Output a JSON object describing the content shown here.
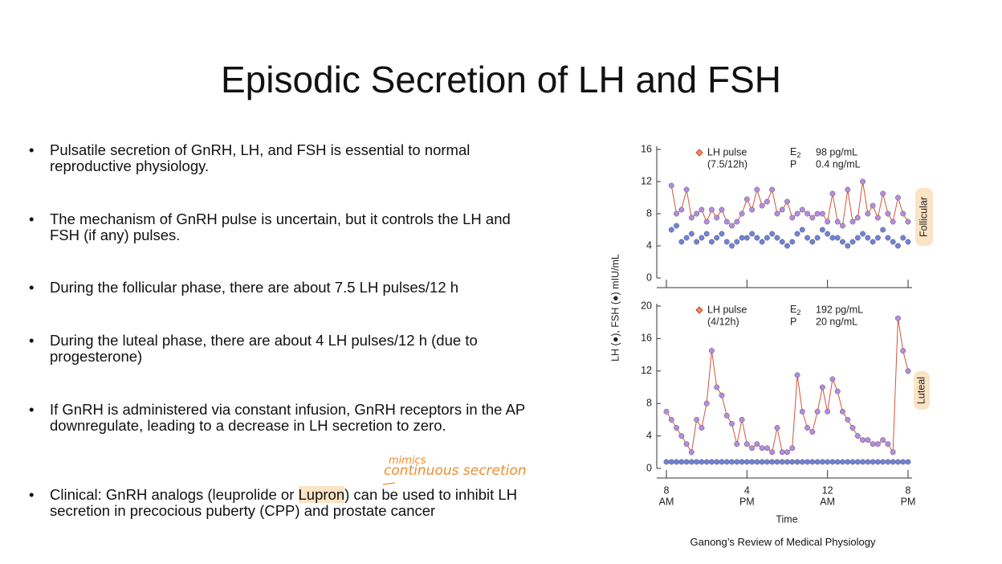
{
  "title": "Episodic Secretion of LH and FSH",
  "bullets": [
    {
      "text": "Pulsatile secretion of GnRH, LH, and FSH is essential to normal reproductive physiology."
    },
    {
      "text": "The mechanism of GnRH pulse is uncertain, but it controls the LH and FSH (if any) pulses."
    },
    {
      "text": "During the follicular phase, there are about 7.5 LH pulses/12 h"
    },
    {
      "text": "During the luteal phase, there are about 4 LH pulses/12 h (due to progesterone)"
    },
    {
      "text": "If GnRH is administered via constant infusion, GnRH receptors in the AP downregulate, leading to a decrease in LH secretion to zero."
    },
    {
      "text_before": "Clinical: GnRH analogs (leuprolide or ",
      "highlight": "Lupron",
      "text_after": ") can be used to inhibit LH secretion in precocious puberty (CPP) and prostate cancer"
    }
  ],
  "annotation": {
    "line1": "mimics",
    "line2": "continuous secretion"
  },
  "figure": {
    "type": "scatter",
    "ylabel": "LH (●), FSH (●) mIU/mL",
    "xlabel": "Time",
    "xlim": [
      0,
      24
    ],
    "xticks": [
      {
        "value": 0,
        "label": "8",
        "sublabel": "AM"
      },
      {
        "value": 8,
        "label": "4",
        "sublabel": "PM"
      },
      {
        "value": 16,
        "label": "12",
        "sublabel": "AM"
      },
      {
        "value": 24,
        "label": "8",
        "sublabel": "PM"
      }
    ],
    "caption": "Ganong’s Review of Medical Physiology",
    "panels": [
      {
        "phase": "Follicular",
        "pulse_label": "LH pulse",
        "pulse_rate": "(7.5/12h)",
        "e2_label": "E",
        "e2_sub": "2",
        "e2_value": "98 pg/mL",
        "p_label": "P",
        "p_value": "0.4 ng/mL",
        "ylim": [
          0,
          16
        ],
        "yticks": [
          0,
          4,
          8,
          12,
          16
        ],
        "x": [
          0.5,
          1,
          1.5,
          2,
          2.5,
          3,
          3.5,
          4,
          4.5,
          5,
          5.5,
          6,
          6.5,
          7,
          7.5,
          8,
          8.5,
          9,
          9.5,
          10,
          10.5,
          11,
          11.5,
          12,
          12.5,
          13,
          13.5,
          14,
          14.5,
          15,
          15.5,
          16,
          16.5,
          17,
          17.5,
          18,
          18.5,
          19,
          19.5,
          20,
          20.5,
          21,
          21.5,
          22,
          22.5,
          23,
          23.5,
          24
        ],
        "series": [
          {
            "name": "LH",
            "color": "#b58ce0",
            "line_color": "#d2553a",
            "values": [
              11.5,
              8,
              8.5,
              11,
              7.5,
              8,
              8.5,
              7,
              8.5,
              7.5,
              8.5,
              7,
              6.5,
              7,
              8,
              9.8,
              8.5,
              11,
              9,
              9.5,
              11,
              8,
              8.5,
              9.5,
              7.5,
              8,
              8.5,
              8,
              7.5,
              8,
              8,
              7,
              10.5,
              7,
              6.5,
              11,
              7,
              7.5,
              12,
              8,
              9,
              7.5,
              10.5,
              8,
              7,
              10,
              8,
              7
            ]
          },
          {
            "name": "FSH",
            "color": "#7182d8",
            "values": [
              6,
              6.5,
              4.5,
              5,
              5.5,
              4.5,
              5,
              5.5,
              4.5,
              5,
              5.5,
              4.5,
              4,
              4.5,
              5,
              5,
              5.5,
              5,
              4.5,
              5,
              5.5,
              5,
              4.5,
              4,
              4.5,
              5.5,
              6,
              5,
              4.5,
              5,
              6,
              5.5,
              5,
              5,
              4.5,
              4,
              4.5,
              5,
              5.5,
              5,
              4.5,
              5,
              6,
              5,
              4.5,
              4,
              5,
              4.5
            ]
          }
        ]
      },
      {
        "phase": "Luteal",
        "pulse_label": "LH pulse",
        "pulse_rate": "(4/12h)",
        "e2_label": "E",
        "e2_sub": "2",
        "e2_value": "192 pg/mL",
        "p_label": "P",
        "p_value": "20 ng/mL",
        "ylim": [
          0,
          20
        ],
        "yticks": [
          0,
          4,
          8,
          12,
          16,
          20
        ],
        "x": [
          0,
          0.5,
          1,
          1.5,
          2,
          2.5,
          3,
          3.5,
          4,
          4.5,
          5,
          5.5,
          6,
          6.5,
          7,
          7.5,
          8,
          8.5,
          9,
          9.5,
          10,
          10.5,
          11,
          11.5,
          12,
          12.5,
          13,
          13.5,
          14,
          14.5,
          15,
          15.5,
          16,
          16.5,
          17,
          17.5,
          18,
          18.5,
          19,
          19.5,
          20,
          20.5,
          21,
          21.5,
          22,
          22.5,
          23,
          23.5,
          24
        ],
        "series": [
          {
            "name": "LH",
            "color": "#b58ce0",
            "line_color": "#d2553a",
            "values": [
              7,
              6,
              5,
              4,
              3,
              2,
              6,
              5,
              8,
              14.5,
              10,
              9,
              6.5,
              5.5,
              3,
              6,
              3,
              2.5,
              3,
              2.5,
              2.5,
              2,
              5,
              2,
              2,
              2.5,
              11.5,
              7,
              5,
              4.5,
              7,
              10,
              7,
              11,
              9.5,
              7,
              6,
              5,
              4,
              3.5,
              3.5,
              3,
              3,
              3.5,
              3,
              2,
              18.5,
              14.5,
              12
            ]
          },
          {
            "name": "FSH",
            "color": "#7182d8",
            "values": [
              0.8,
              0.8,
              0.8,
              0.8,
              0.8,
              0.8,
              0.8,
              0.8,
              0.8,
              0.8,
              0.8,
              0.8,
              0.8,
              0.8,
              0.8,
              0.8,
              0.8,
              0.8,
              0.8,
              0.8,
              0.8,
              0.8,
              0.8,
              0.8,
              0.8,
              0.8,
              0.8,
              0.8,
              0.8,
              0.8,
              0.8,
              0.8,
              0.8,
              0.8,
              0.8,
              0.8,
              0.8,
              0.8,
              0.8,
              0.8,
              0.8,
              0.8,
              0.8,
              0.8,
              0.8,
              0.8,
              0.8,
              0.8,
              0.8
            ]
          }
        ]
      }
    ]
  }
}
